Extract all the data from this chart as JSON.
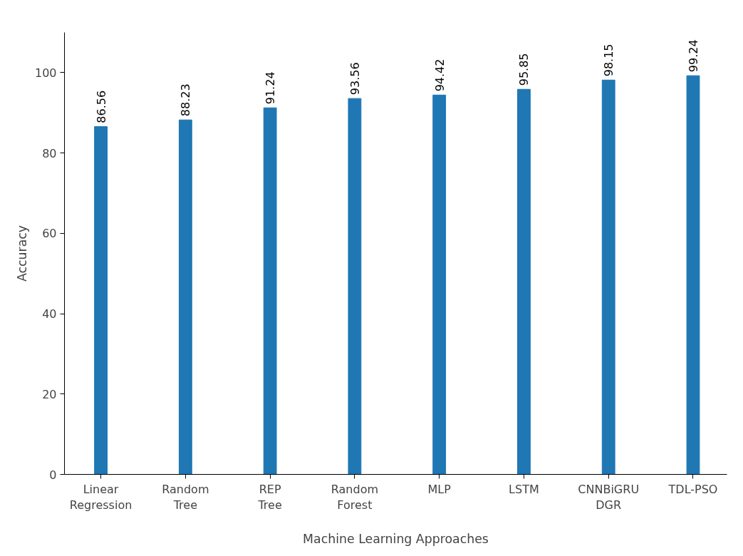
{
  "chart_data": {
    "type": "bar",
    "xlabel": "Machine Learning Approaches",
    "ylabel": "Accuracy",
    "categories": [
      "Linear\nRegression",
      "Random\nTree",
      "REP\nTree",
      "Random\nForest",
      "MLP",
      "LSTM",
      "CNNBiGRU\nDGR",
      "TDL-PSO"
    ],
    "values": [
      86.56,
      88.23,
      91.24,
      93.56,
      94.42,
      95.85,
      98.15,
      99.24
    ],
    "color": "#1f77b4",
    "ylim": [
      0,
      110
    ],
    "yticks": [
      0,
      20,
      40,
      60,
      80,
      100
    ],
    "data_labels": true,
    "grid": false
  }
}
